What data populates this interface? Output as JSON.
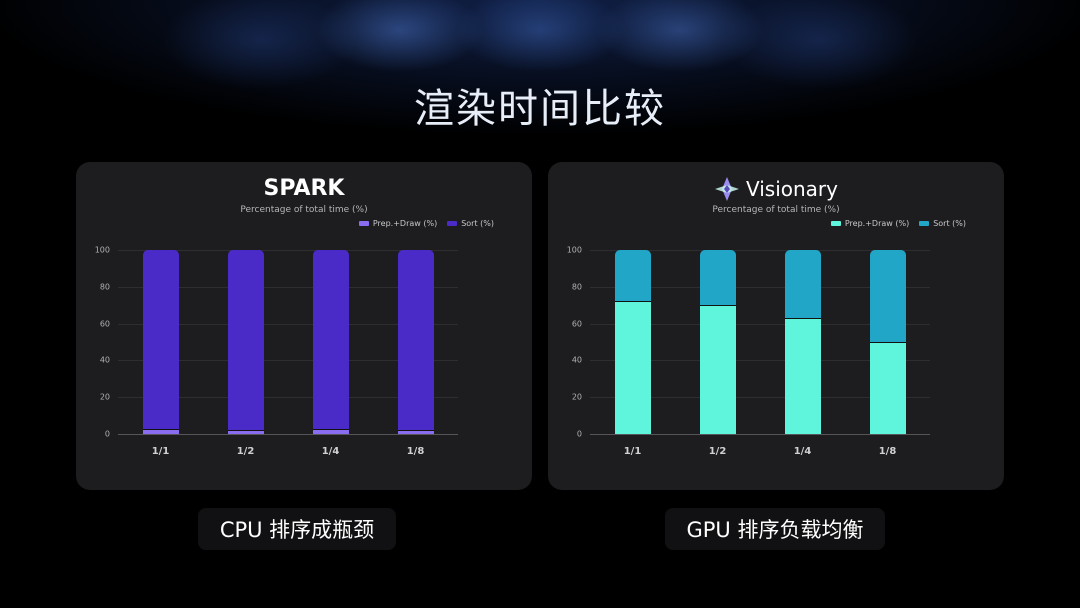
{
  "page": {
    "title": "渲染时间比较"
  },
  "colors": {
    "spark_prep": "#8a6cf0",
    "spark_sort": "#4a2bc8",
    "vis_prep": "#5ff5dc",
    "vis_sort": "#22a6c8"
  },
  "left_card": {
    "logo": "SPARK",
    "subtitle": "Percentage of total time (%)",
    "legend": [
      "Prep.+Draw (%)",
      "Sort (%)"
    ],
    "caption": "CPU 排序成瓶颈"
  },
  "right_card": {
    "logo": "Visionary",
    "subtitle": "Percentage of total time (%)",
    "legend": [
      "Prep.+Draw (%)",
      "Sort (%)"
    ],
    "caption": "GPU 排序负载均衡"
  },
  "chart_data": [
    {
      "type": "bar",
      "stacked": true,
      "title": "SPARK",
      "subtitle": "Percentage of total time (%)",
      "categories": [
        "1/1",
        "1/2",
        "1/4",
        "1/8"
      ],
      "series": [
        {
          "name": "Prep.+Draw (%)",
          "values": [
            2,
            1.5,
            2,
            1.5
          ]
        },
        {
          "name": "Sort (%)",
          "values": [
            98,
            98.5,
            98,
            98.5
          ]
        }
      ],
      "yticks": [
        0,
        20,
        40,
        60,
        80,
        100
      ],
      "ylim": [
        0,
        100
      ],
      "legend_position": "top-right",
      "grid": true
    },
    {
      "type": "bar",
      "stacked": true,
      "title": "Visionary",
      "subtitle": "Percentage of total time (%)",
      "categories": [
        "1/1",
        "1/2",
        "1/4",
        "1/8"
      ],
      "series": [
        {
          "name": "Prep.+Draw (%)",
          "values": [
            72,
            70,
            63,
            49.5
          ]
        },
        {
          "name": "Sort (%)",
          "values": [
            28,
            30,
            37,
            50.5
          ]
        }
      ],
      "yticks": [
        0,
        20,
        40,
        60,
        80,
        100
      ],
      "ylim": [
        0,
        100
      ],
      "legend_position": "top-right",
      "grid": true
    }
  ]
}
